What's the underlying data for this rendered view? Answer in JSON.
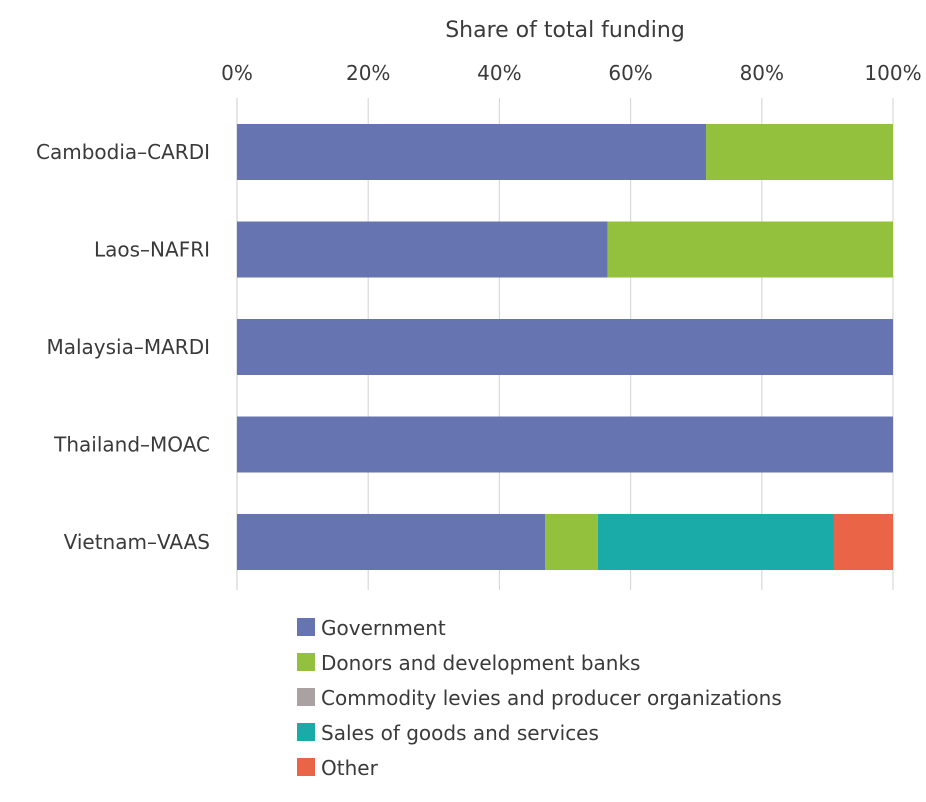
{
  "chart_data": {
    "type": "bar",
    "orientation": "horizontal",
    "stacked": true,
    "normalized": true,
    "xlabel": "Share of total funding",
    "xaxis_position": "top",
    "xlim": [
      0,
      100
    ],
    "xticks": [
      0,
      20,
      40,
      60,
      80,
      100
    ],
    "tick_suffix": "%",
    "grid": true,
    "legend_position": "bottom",
    "categories": [
      "Cambodia–CARDI",
      "Laos–NAFRI",
      "Malaysia–MARDI",
      "Thailand–MOAC",
      "Vietnam–VAAS"
    ],
    "series": [
      {
        "name": "Government",
        "color": "#6675b2",
        "values": [
          71.5,
          56.5,
          100,
          100,
          47
        ]
      },
      {
        "name": "Donors and development banks",
        "color": "#93c13e",
        "values": [
          28.5,
          43.5,
          0,
          0,
          8
        ]
      },
      {
        "name": "Commodity levies and producer organizations",
        "color": "#aaa1a2",
        "values": [
          0,
          0,
          0,
          0,
          0
        ]
      },
      {
        "name": "Sales of goods and services",
        "color": "#1aaaa8",
        "values": [
          0,
          0,
          0,
          0,
          36
        ]
      },
      {
        "name": "Other",
        "color": "#ea6547",
        "values": [
          0,
          0,
          0,
          0,
          9
        ]
      }
    ]
  }
}
